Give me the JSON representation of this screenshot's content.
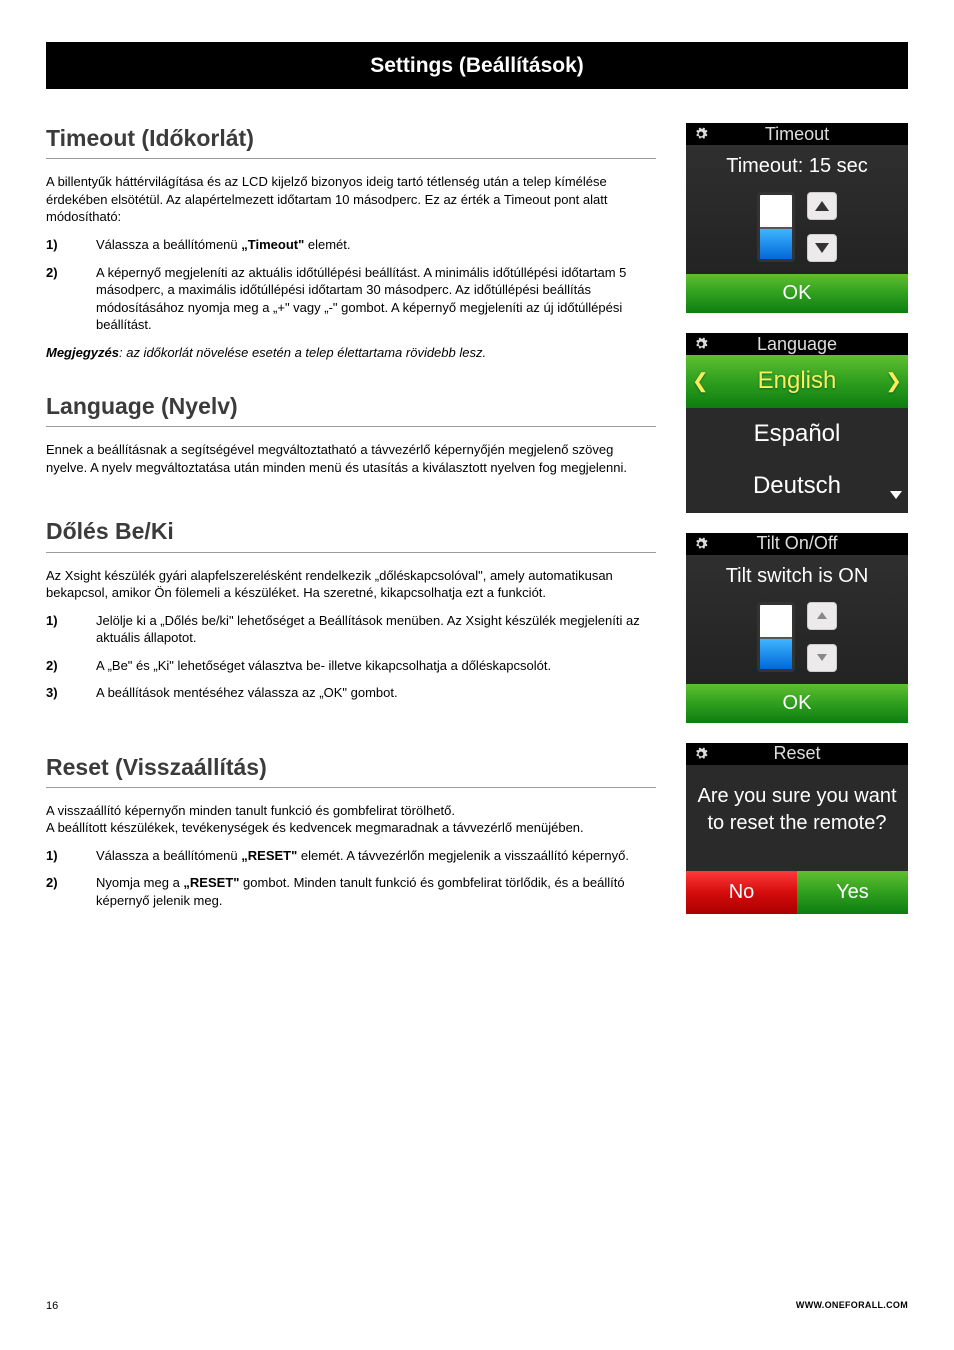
{
  "page_bar_title": "Settings (Beállítások)",
  "sections": {
    "timeout": {
      "title": "Timeout (Időkorlát)",
      "intro": "A billentyűk háttérvilágítása és az LCD kijelző bizonyos ideig tartó tétlenség után a telep kímélése érdekében elsötétül. Az alapértelmezett időtartam 10 másodperc. Ez az érték a Timeout pont alatt módosítható:",
      "steps": [
        {
          "num": "1)",
          "text_before": "Válassza a beállítómenü ",
          "bold": "„Timeout\"",
          "text_after": " elemét."
        },
        {
          "num": "2)",
          "text": "A képernyő megjeleníti az aktuális időtúllépési beállítást. A minimális időtúllépési időtartam 5 másodperc, a maximális időtúllépési időtartam 30 másodperc. Az időtúllépési beállítás módosításához nyomja meg a „+\" vagy „-\" gombot. A képernyő megjeleníti az új időtúllépési beállítást."
        }
      ],
      "note_label": "Megjegyzés",
      "note_text": ": az időkorlát növelése esetén a telep élettartama rövidebb lesz."
    },
    "language": {
      "title": "Language (Nyelv)",
      "text": "Ennek a beállításnak a segítségével megváltoztatható a távvezérlő képernyőjén megjelenő szöveg nyelve. A nyelv megváltoztatása után minden menü és utasítás a kiválasztott nyelven fog megjelenni."
    },
    "tilt": {
      "title": "Dőlés Be/Ki",
      "intro": "Az Xsight készülék gyári alapfelszerelésként rendelkezik „dőléskapcsolóval\", amely automatikusan bekapcsol, amikor Ön fölemeli a készüléket. Ha szeretné, kikapcsolhatja ezt a funkciót.",
      "steps": [
        {
          "num": "1)",
          "text": "Jelölje ki a „Dőlés be/ki\" lehetőséget a Beállítások menüben. Az Xsight készülék megjeleníti az aktuális állapotot."
        },
        {
          "num": "2)",
          "text": "A „Be\" és „Ki\" lehetőséget választva be- illetve kikapcsolhatja a dőléskapcsolót."
        },
        {
          "num": "3)",
          "text": "A beállítások mentéséhez válassza az „OK\" gombot."
        }
      ]
    },
    "reset": {
      "title": "Reset (Visszaállítás)",
      "line1": "A visszaállító képernyőn minden tanult funkció és gombfelirat törölhető.",
      "line2": "A beállított készülékek, tevékenységek és kedvencek megmaradnak a távvezérlő menüjében.",
      "steps": [
        {
          "num": "1)",
          "text_before": "Válassza a beállítómenü ",
          "bold": "„RESET\"",
          "text_after": " elemét. A távvezérlőn megjelenik a visszaállító képernyő."
        },
        {
          "num": "2)",
          "text_before": "Nyomja meg a ",
          "bold": "„RESET\"",
          "text_after": " gombot. Minden tanult funkció és gombfelirat törlődik, és a beállító képernyő jelenik meg."
        }
      ]
    }
  },
  "screens": {
    "timeout": {
      "header": "Timeout",
      "status": "Timeout: 15 sec",
      "slider_fill_pct": 50,
      "ok": "OK"
    },
    "language": {
      "header": "Language",
      "options": [
        "English",
        "Español",
        "Deutsch"
      ],
      "selected_index": 0
    },
    "tilt": {
      "header": "Tilt On/Off",
      "status": "Tilt switch is ON",
      "slider_fill_pct": 50,
      "ok": "OK"
    },
    "reset": {
      "header": "Reset",
      "question": "Are you sure you want to reset the remote?",
      "no": "No",
      "yes": "Yes"
    }
  },
  "footer": {
    "page": "16",
    "url": "WWW.ONEFORALL.COM"
  },
  "colors": {
    "green_grad": "#2f9f1f",
    "red_grad": "#d40c0c",
    "highlight_text": "#ffed5a"
  }
}
